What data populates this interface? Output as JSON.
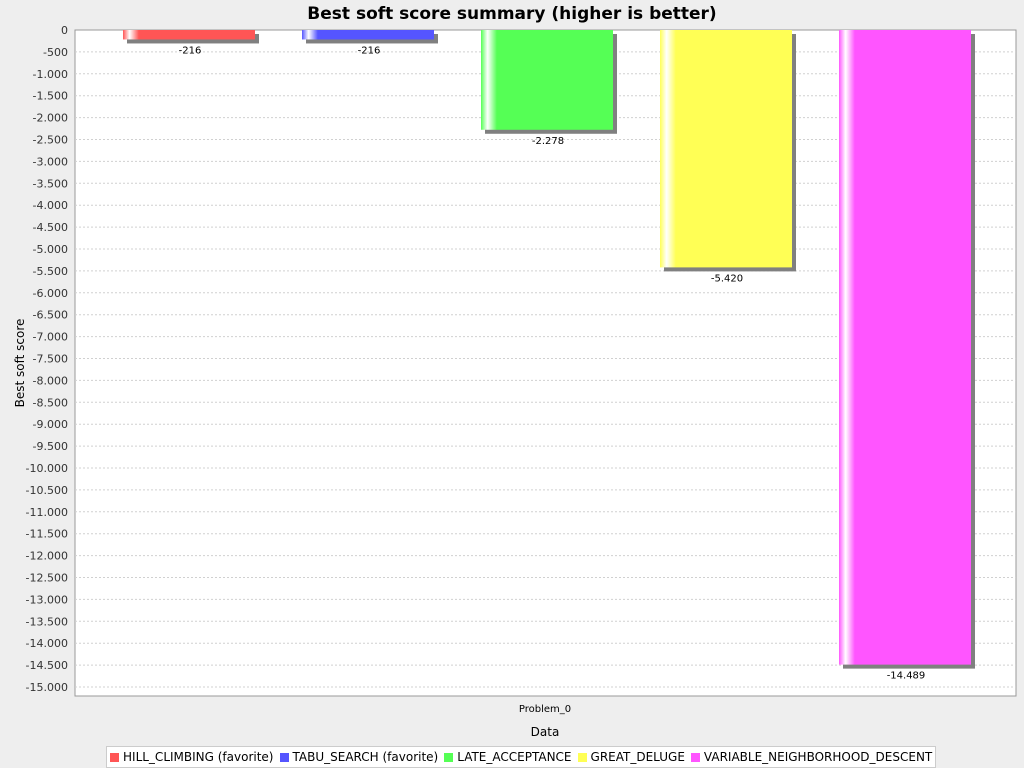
{
  "chart_data": {
    "type": "bar",
    "title": "Best soft score summary (higher is better)",
    "xlabel": "Data",
    "ylabel": "Best soft score",
    "categories": [
      "Problem_0"
    ],
    "ylim": [
      -15300,
      0
    ],
    "yticks": [
      0,
      -500,
      -1000,
      -1500,
      -2000,
      -2500,
      -3000,
      -3500,
      -4000,
      -4500,
      -5000,
      -5500,
      -6000,
      -6500,
      -7000,
      -7500,
      -8000,
      -8500,
      -9000,
      -9500,
      -10000,
      -10500,
      -11000,
      -11500,
      -12000,
      -12500,
      -13000,
      -13500,
      -14000,
      -14500,
      -15000
    ],
    "ytick_labels": [
      "0",
      "-500",
      "-1.000",
      "-1.500",
      "-2.000",
      "-2.500",
      "-3.000",
      "-3.500",
      "-4.000",
      "-4.500",
      "-5.000",
      "-5.500",
      "-6.000",
      "-6.500",
      "-7.000",
      "-7.500",
      "-8.000",
      "-8.500",
      "-9.000",
      "-9.500",
      "-10.000",
      "-10.500",
      "-11.000",
      "-11.500",
      "-12.000",
      "-12.500",
      "-13.000",
      "-13.500",
      "-14.000",
      "-14.500",
      "-15.000"
    ],
    "grid": true,
    "legend_position": "bottom",
    "series": [
      {
        "name": "HILL_CLIMBING (favorite)",
        "values": [
          -216
        ],
        "labels": [
          "-216"
        ],
        "color": "#ff5555"
      },
      {
        "name": "TABU_SEARCH (favorite)",
        "values": [
          -216
        ],
        "labels": [
          "-216"
        ],
        "color": "#5555ff"
      },
      {
        "name": "LATE_ACCEPTANCE",
        "values": [
          -2278
        ],
        "labels": [
          "-2.278"
        ],
        "color": "#55ff55"
      },
      {
        "name": "GREAT_DELUGE",
        "values": [
          -5420
        ],
        "labels": [
          "-5.420"
        ],
        "color": "#ffff55"
      },
      {
        "name": "VARIABLE_NEIGHBORHOOD_DESCENT",
        "values": [
          -14489
        ],
        "labels": [
          "-14.489"
        ],
        "color": "#ff55ff"
      }
    ]
  }
}
